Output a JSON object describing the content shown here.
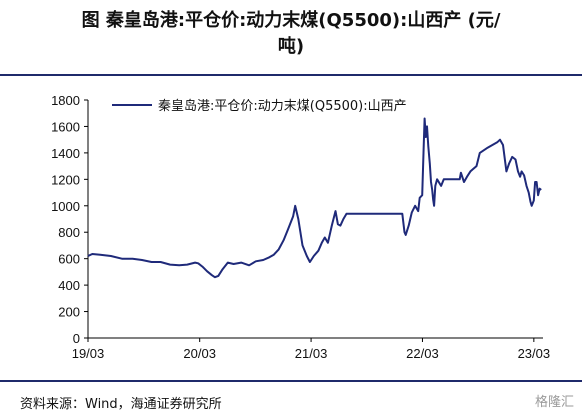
{
  "header": {
    "title_line1": "图   秦皇岛港:平仓价:动力末煤(Q5500):山西产 (元/",
    "title_line2": "吨)"
  },
  "footer": {
    "source": "资料来源：Wind，海通证券研究所",
    "watermark": "格隆汇"
  },
  "colors": {
    "series": "#1f2a7a",
    "rule": "#1f2a6b"
  },
  "chart_data": {
    "type": "line",
    "ylim": [
      0,
      1800
    ],
    "yticks": [
      0,
      200,
      400,
      600,
      800,
      1000,
      1200,
      1400,
      1600,
      1800
    ],
    "xlim": [
      "2019-03-01",
      "2023-03-31"
    ],
    "xticks": [
      {
        "label": "19/03",
        "date": "2019-03-01"
      },
      {
        "label": "20/03",
        "date": "2020-03-01"
      },
      {
        "label": "21/03",
        "date": "2021-03-01"
      },
      {
        "label": "22/03",
        "date": "2022-03-01"
      },
      {
        "label": "23/03",
        "date": "2023-03-01"
      }
    ],
    "grid": false,
    "legend": "top-left",
    "series": [
      {
        "name": "秦皇岛港:平仓价:动力末煤(Q5500):山西产",
        "points": [
          [
            "2019-03-01",
            620
          ],
          [
            "2019-03-15",
            635
          ],
          [
            "2019-04-10",
            630
          ],
          [
            "2019-05-15",
            620
          ],
          [
            "2019-06-20",
            600
          ],
          [
            "2019-07-25",
            600
          ],
          [
            "2019-08-25",
            590
          ],
          [
            "2019-09-25",
            575
          ],
          [
            "2019-10-25",
            575
          ],
          [
            "2019-11-25",
            555
          ],
          [
            "2019-12-25",
            550
          ],
          [
            "2020-01-20",
            555
          ],
          [
            "2020-02-15",
            570
          ],
          [
            "2020-02-25",
            565
          ],
          [
            "2020-03-10",
            540
          ],
          [
            "2020-03-25",
            505
          ],
          [
            "2020-04-10",
            475
          ],
          [
            "2020-04-20",
            460
          ],
          [
            "2020-05-01",
            470
          ],
          [
            "2020-05-15",
            520
          ],
          [
            "2020-06-01",
            570
          ],
          [
            "2020-06-20",
            560
          ],
          [
            "2020-07-15",
            570
          ],
          [
            "2020-08-10",
            550
          ],
          [
            "2020-09-01",
            580
          ],
          [
            "2020-09-25",
            590
          ],
          [
            "2020-10-15",
            610
          ],
          [
            "2020-10-30",
            630
          ],
          [
            "2020-11-15",
            670
          ],
          [
            "2020-12-01",
            740
          ],
          [
            "2020-12-15",
            820
          ],
          [
            "2021-01-01",
            920
          ],
          [
            "2021-01-08",
            1000
          ],
          [
            "2021-01-18",
            900
          ],
          [
            "2021-02-01",
            700
          ],
          [
            "2021-02-15",
            620
          ],
          [
            "2021-02-25",
            575
          ],
          [
            "2021-03-10",
            620
          ],
          [
            "2021-03-25",
            660
          ],
          [
            "2021-04-05",
            720
          ],
          [
            "2021-04-15",
            760
          ],
          [
            "2021-04-25",
            720
          ],
          [
            "2021-05-08",
            850
          ],
          [
            "2021-05-20",
            960
          ],
          [
            "2021-05-28",
            860
          ],
          [
            "2021-06-05",
            850
          ],
          [
            "2021-06-15",
            900
          ],
          [
            "2021-06-25",
            940
          ],
          [
            "2021-08-01",
            940
          ],
          [
            "2021-09-01",
            940
          ],
          [
            "2021-10-01",
            940
          ],
          [
            "2021-11-01",
            940
          ],
          [
            "2021-12-01",
            940
          ],
          [
            "2021-12-25",
            940
          ],
          [
            "2022-01-01",
            800
          ],
          [
            "2022-01-05",
            780
          ],
          [
            "2022-01-15",
            850
          ],
          [
            "2022-01-25",
            950
          ],
          [
            "2022-02-05",
            1000
          ],
          [
            "2022-02-15",
            960
          ],
          [
            "2022-02-20",
            1060
          ],
          [
            "2022-02-28",
            1080
          ],
          [
            "2022-03-05",
            1450
          ],
          [
            "2022-03-08",
            1660
          ],
          [
            "2022-03-12",
            1520
          ],
          [
            "2022-03-16",
            1600
          ],
          [
            "2022-03-20",
            1450
          ],
          [
            "2022-03-25",
            1320
          ],
          [
            "2022-03-29",
            1180
          ],
          [
            "2022-04-02",
            1120
          ],
          [
            "2022-04-05",
            1050
          ],
          [
            "2022-04-08",
            1000
          ],
          [
            "2022-04-12",
            1150
          ],
          [
            "2022-04-18",
            1200
          ],
          [
            "2022-05-01",
            1150
          ],
          [
            "2022-05-10",
            1200
          ],
          [
            "2022-06-01",
            1200
          ],
          [
            "2022-07-01",
            1200
          ],
          [
            "2022-07-05",
            1250
          ],
          [
            "2022-07-15",
            1180
          ],
          [
            "2022-07-25",
            1220
          ],
          [
            "2022-08-05",
            1260
          ],
          [
            "2022-08-15",
            1280
          ],
          [
            "2022-08-25",
            1300
          ],
          [
            "2022-09-05",
            1400
          ],
          [
            "2022-10-01",
            1440
          ],
          [
            "2022-11-01",
            1480
          ],
          [
            "2022-11-10",
            1500
          ],
          [
            "2022-11-20",
            1460
          ],
          [
            "2022-12-01",
            1260
          ],
          [
            "2022-12-10",
            1320
          ],
          [
            "2022-12-20",
            1370
          ],
          [
            "2022-12-31",
            1350
          ],
          [
            "2023-01-08",
            1260
          ],
          [
            "2023-01-15",
            1220
          ],
          [
            "2023-01-20",
            1260
          ],
          [
            "2023-01-28",
            1230
          ],
          [
            "2023-02-05",
            1150
          ],
          [
            "2023-02-12",
            1100
          ],
          [
            "2023-02-18",
            1030
          ],
          [
            "2023-02-22",
            1000
          ],
          [
            "2023-03-01",
            1040
          ],
          [
            "2023-03-05",
            1180
          ],
          [
            "2023-03-10",
            1180
          ],
          [
            "2023-03-15",
            1080
          ],
          [
            "2023-03-20",
            1130
          ],
          [
            "2023-03-25",
            1120
          ]
        ]
      }
    ]
  }
}
